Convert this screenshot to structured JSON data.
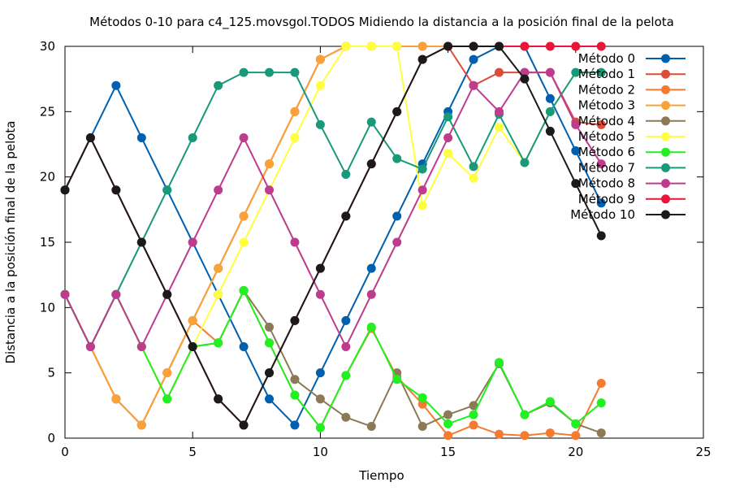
{
  "chart_data": {
    "type": "line",
    "title": "Métodos 0-10 para c4_125.movsgol.TODOS Midiendo la distancia a la posición final de la pelota",
    "xlabel": "Tiempo",
    "ylabel": "Distancia a la posición final de la pelota",
    "xlim": [
      0,
      25
    ],
    "ylim": [
      0,
      30
    ],
    "xticks": [
      0,
      5,
      10,
      15,
      20,
      25
    ],
    "yticks": [
      0,
      5,
      10,
      15,
      20,
      25,
      30
    ],
    "grid": false,
    "legend_position": "top-right",
    "x": [
      0,
      1,
      2,
      3,
      4,
      5,
      6,
      7,
      8,
      9,
      10,
      11,
      12,
      13,
      14,
      15,
      16,
      17,
      18,
      19,
      20,
      21
    ],
    "series": [
      {
        "name": "Método 0",
        "color": "#0060ad",
        "values": [
          19,
          23,
          27,
          23,
          19,
          15,
          11,
          7,
          3,
          1,
          5,
          9,
          13,
          17,
          21,
          25,
          29,
          30,
          30,
          26,
          22,
          18
        ]
      },
      {
        "name": "Método 1",
        "color": "#dd4b39",
        "values": [
          11,
          7,
          3,
          1,
          5,
          9,
          13,
          17,
          21,
          25,
          29,
          30,
          30,
          30,
          30,
          30,
          27,
          28,
          28,
          28,
          24.2,
          24
        ]
      },
      {
        "name": "Método 2",
        "color": "#f57b31",
        "values": [
          11,
          7,
          3,
          1,
          5,
          9,
          7.3,
          11.3,
          7.3,
          3.3,
          0.8,
          4.8,
          8.4,
          4.7,
          2.6,
          0.2,
          1,
          0.3,
          0.2,
          0.4,
          0.2,
          4.2
        ]
      },
      {
        "name": "Método 3",
        "color": "#f9a23a",
        "values": [
          11,
          7,
          3,
          1,
          5,
          9,
          13,
          17,
          21,
          25,
          29,
          30,
          30,
          30,
          30,
          30,
          30,
          30,
          30,
          30,
          30,
          30
        ]
      },
      {
        "name": "Método 4",
        "color": "#8b7a55",
        "values": [
          11,
          7,
          11,
          7,
          3,
          7,
          7.3,
          11.3,
          8.5,
          4.5,
          3,
          1.6,
          0.9,
          5,
          0.9,
          1.8,
          2.5,
          5.7,
          1.8,
          2.7,
          1.1,
          0.4
        ]
      },
      {
        "name": "Método 5",
        "color": "#ffff40",
        "values": [
          11,
          7,
          11,
          7,
          3,
          7,
          11,
          15,
          19,
          23,
          27,
          30,
          30,
          30,
          17.8,
          21.8,
          19.9,
          23.8,
          21.1,
          25,
          28,
          28
        ]
      },
      {
        "name": "Método 6",
        "color": "#21f021",
        "values": [
          11,
          7,
          11,
          7,
          3,
          7,
          7.3,
          11.3,
          7.3,
          3.3,
          0.8,
          4.8,
          8.5,
          4.5,
          3.1,
          1.1,
          1.8,
          5.8,
          1.8,
          2.8,
          1.1,
          2.7
        ]
      },
      {
        "name": "Método 7",
        "color": "#17997a",
        "values": [
          11,
          7,
          11,
          15,
          19,
          23,
          27,
          28,
          28,
          28,
          24,
          20.2,
          24.2,
          21.4,
          20.6,
          24.6,
          20.8,
          24.8,
          21.1,
          25,
          28,
          28
        ]
      },
      {
        "name": "Método 8",
        "color": "#bd3c8e",
        "values": [
          11,
          7,
          11,
          7,
          11,
          15,
          19,
          23,
          19,
          15,
          11,
          7,
          11,
          15,
          19,
          23,
          27,
          25,
          28,
          28,
          24,
          21
        ]
      },
      {
        "name": "Método 9",
        "color": "#e8173a",
        "values": [
          19,
          23,
          19,
          15,
          11,
          7,
          3,
          1,
          5,
          9,
          13,
          17,
          21,
          25,
          29,
          30,
          30,
          30,
          30,
          30,
          30,
          30
        ]
      },
      {
        "name": "Método 10",
        "color": "#1a1a1a",
        "values": [
          19,
          23,
          19,
          15,
          11,
          7,
          3,
          1,
          5,
          9,
          13,
          17,
          21,
          25,
          29,
          30,
          30,
          30,
          27.5,
          23.5,
          19.5,
          15.5
        ]
      }
    ]
  }
}
